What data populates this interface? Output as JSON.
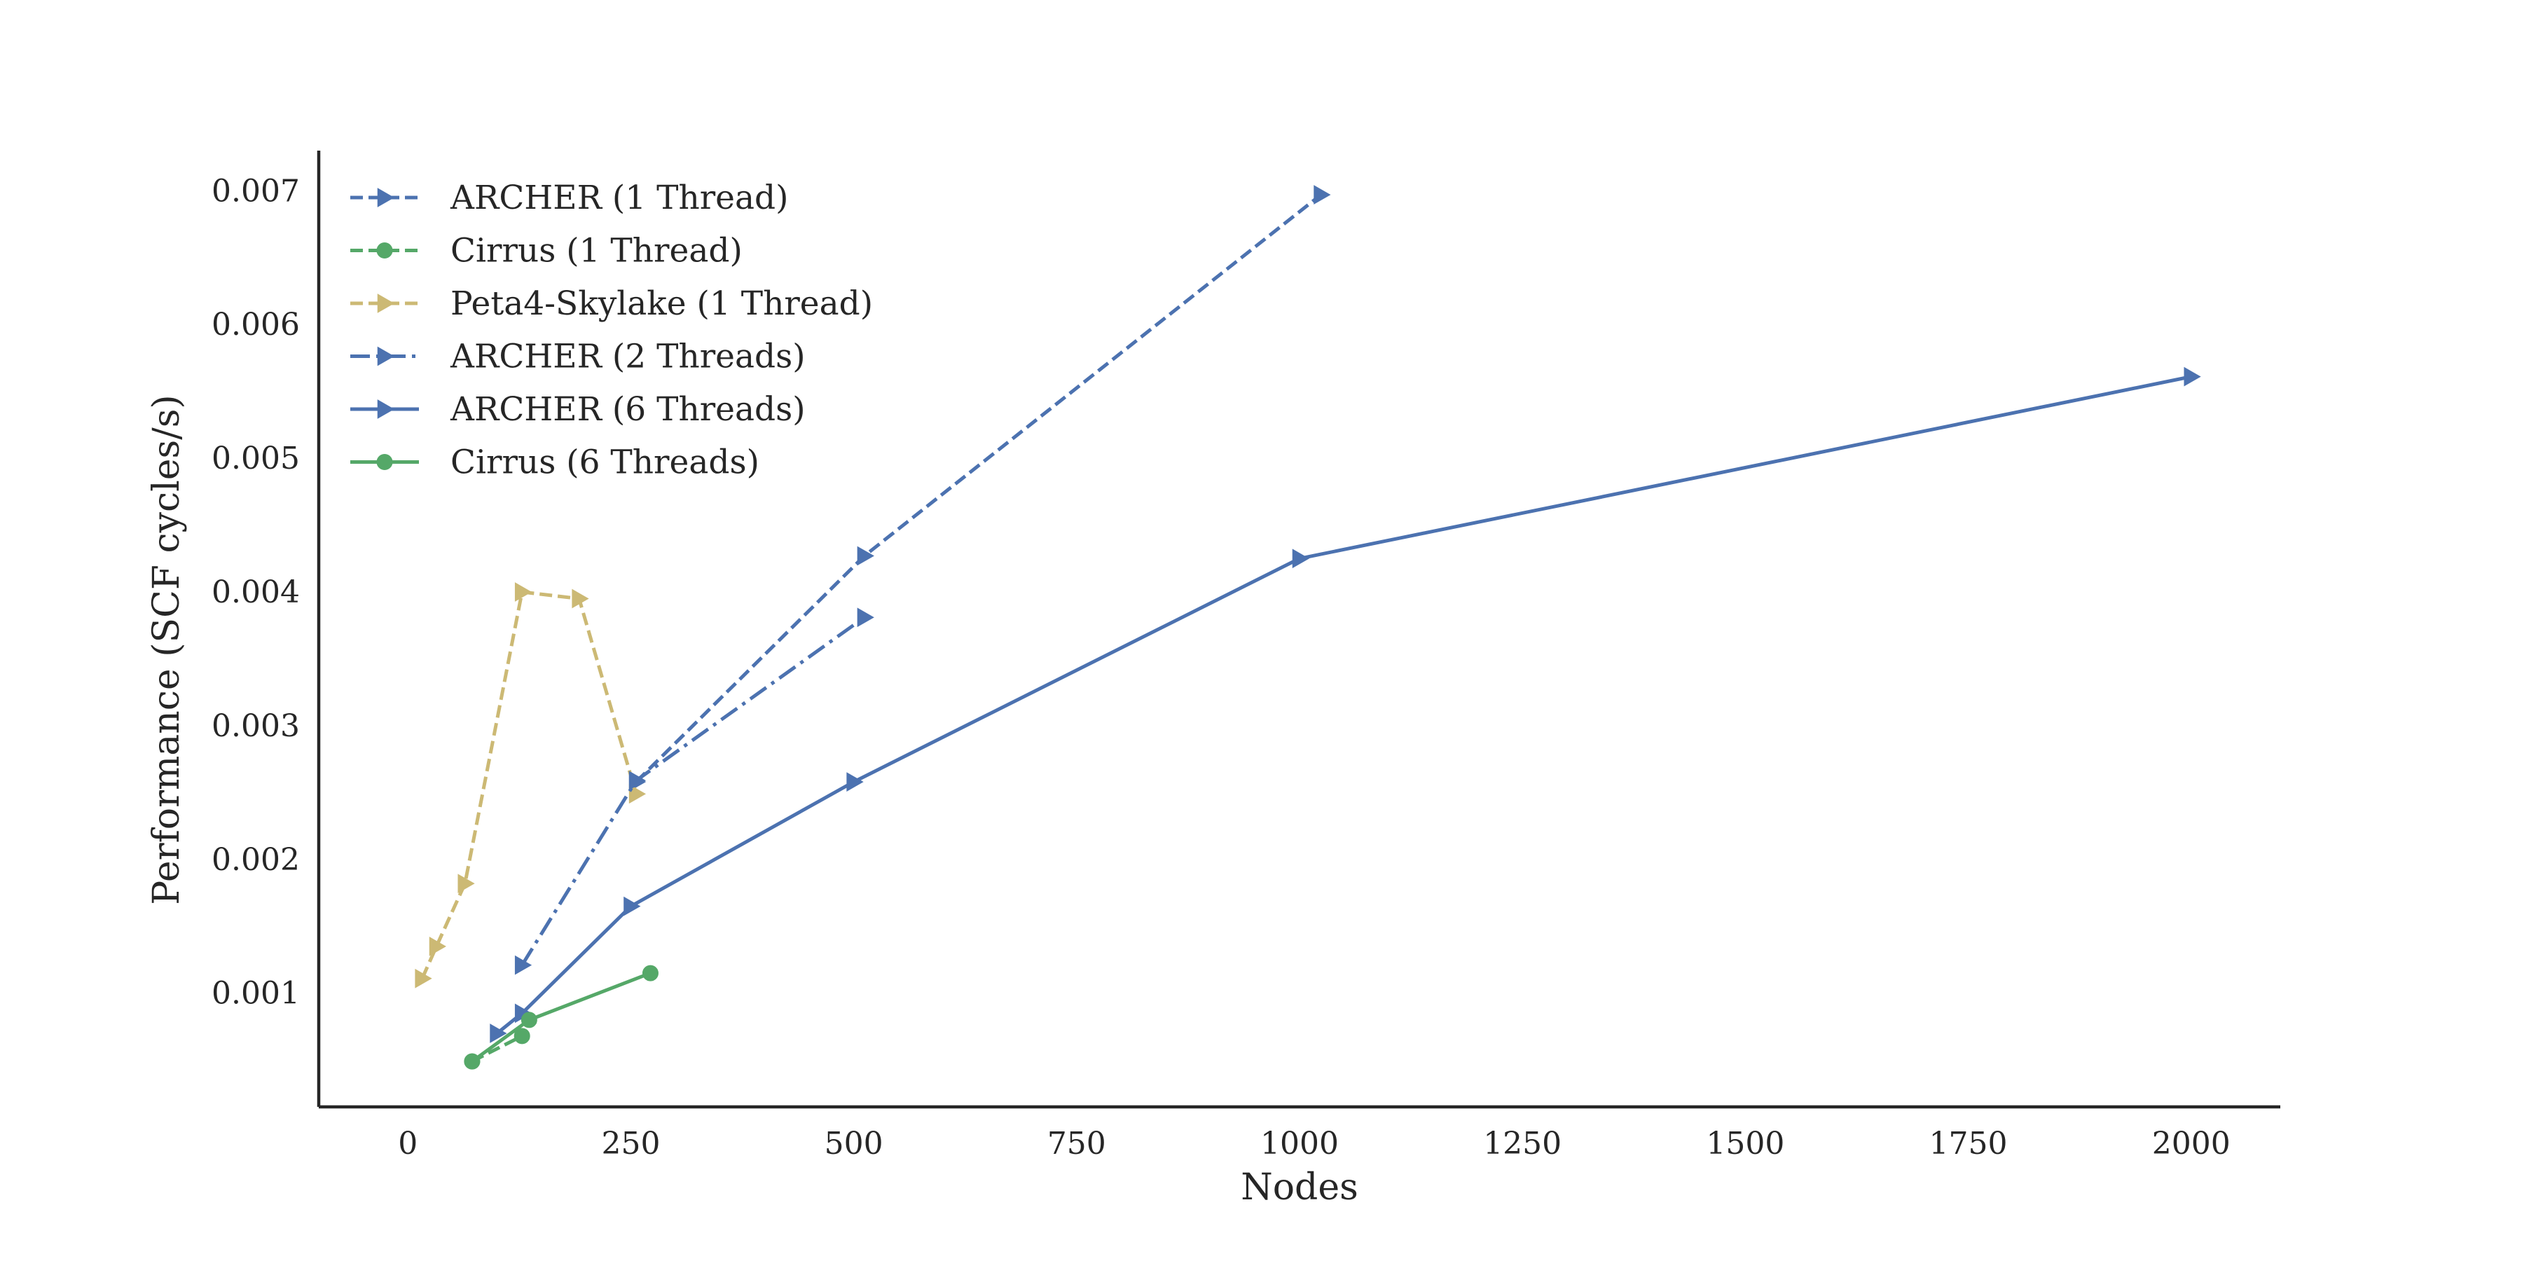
{
  "chart_data": {
    "type": "line",
    "xlabel": "Nodes",
    "ylabel": "Performance (SCF cycles/s)",
    "xlim": [
      -100,
      2100
    ],
    "ylim": [
      0.00015,
      0.0073
    ],
    "x_ticks": [
      {
        "value": 0,
        "label": "0"
      },
      {
        "value": 250,
        "label": "250"
      },
      {
        "value": 500,
        "label": "500"
      },
      {
        "value": 750,
        "label": "750"
      },
      {
        "value": 1000,
        "label": "1000"
      },
      {
        "value": 1250,
        "label": "1250"
      },
      {
        "value": 1500,
        "label": "1500"
      },
      {
        "value": 1750,
        "label": "1750"
      },
      {
        "value": 2000,
        "label": "2000"
      }
    ],
    "y_ticks": [
      {
        "value": 0.001,
        "label": "0.001"
      },
      {
        "value": 0.002,
        "label": "0.002"
      },
      {
        "value": 0.003,
        "label": "0.003"
      },
      {
        "value": 0.004,
        "label": "0.004"
      },
      {
        "value": 0.005,
        "label": "0.005"
      },
      {
        "value": 0.006,
        "label": "0.006"
      },
      {
        "value": 0.007,
        "label": "0.007"
      }
    ],
    "grid": false,
    "legend_position": "top-left",
    "series": [
      {
        "name": "ARCHER (1 Thread)",
        "color": "#4c72b0",
        "linestyle": "dashed",
        "marker": "triangle-right",
        "x": [
          256,
          512,
          1024
        ],
        "y": [
          0.00258,
          0.00427,
          0.00697
        ]
      },
      {
        "name": "Cirrus (1 Thread)",
        "color": "#55a868",
        "linestyle": "dashed",
        "marker": "circle",
        "x": [
          72,
          128
        ],
        "y": [
          0.00049,
          0.00068
        ]
      },
      {
        "name": "Peta4-Skylake (1 Thread)",
        "color": "#ccb974",
        "linestyle": "dashed",
        "marker": "triangle-right",
        "x": [
          16,
          32,
          64,
          128,
          192,
          256
        ],
        "y": [
          0.00111,
          0.00135,
          0.00182,
          0.004,
          0.00395,
          0.00249
        ]
      },
      {
        "name": "ARCHER (2 Threads)",
        "color": "#4c72b0",
        "linestyle": "dashdot",
        "marker": "triangle-right",
        "x": [
          128,
          256,
          512
        ],
        "y": [
          0.00121,
          0.00259,
          0.00381
        ]
      },
      {
        "name": "ARCHER (6 Threads)",
        "color": "#4c72b0",
        "linestyle": "solid",
        "marker": "triangle-right",
        "x": [
          100,
          128,
          250,
          500,
          1000,
          2000
        ],
        "y": [
          0.0007,
          0.00085,
          0.00165,
          0.00258,
          0.00425,
          0.00561
        ]
      },
      {
        "name": "Cirrus (6 Threads)",
        "color": "#55a868",
        "linestyle": "solid",
        "marker": "circle",
        "x": [
          72,
          136,
          272
        ],
        "y": [
          0.00049,
          0.0008,
          0.00115
        ]
      }
    ]
  }
}
